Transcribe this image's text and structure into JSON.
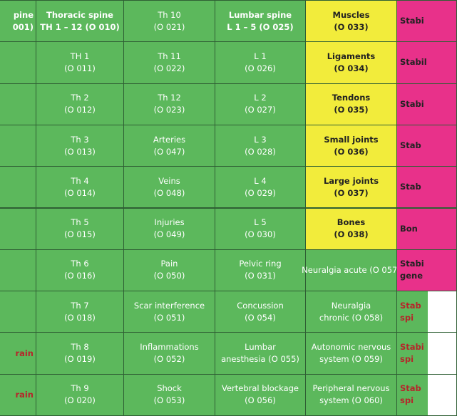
{
  "table": {
    "rows": [
      [
        [
          "pine",
          "001)"
        ],
        [
          "Thoracic spine",
          "TH 1 – 12 (O 010)"
        ],
        [
          "Th 10",
          "(O 021)"
        ],
        [
          "Lumbar spine",
          "L 1 – 5 (O 025)"
        ],
        [
          "Muscles",
          "(O 033)"
        ],
        [
          "Stabi"
        ]
      ],
      [
        [],
        [
          "TH 1",
          "(O 011)"
        ],
        [
          "Th 11",
          "(O 022)"
        ],
        [
          "L 1",
          "(O 026)"
        ],
        [
          "Ligaments",
          "(O 034)"
        ],
        [
          "Stabil"
        ]
      ],
      [
        [],
        [
          "Th 2",
          "(O 012)"
        ],
        [
          "Th 12",
          "(O 023)"
        ],
        [
          "L 2",
          "(O 027)"
        ],
        [
          "Tendons",
          "(O 035)"
        ],
        [
          "Stabi"
        ]
      ],
      [
        [],
        [
          "Th 3",
          "(O 013)"
        ],
        [
          "Arteries",
          "(O 047)"
        ],
        [
          "L 3",
          "(O 028)"
        ],
        [
          "Small joints",
          "(O 036)"
        ],
        [
          "Stab"
        ]
      ],
      [
        [],
        [
          "Th 4",
          "(O 014)"
        ],
        [
          "Veins",
          "(O 048)"
        ],
        [
          "L 4",
          "(O 029)"
        ],
        [
          "Large joints",
          "(O 037)"
        ],
        [
          "Stab"
        ]
      ],
      [
        [],
        [
          "Th 5",
          "(O 015)"
        ],
        [
          "Injuries",
          "(O 049)"
        ],
        [
          "L 5",
          "(O 030)"
        ],
        [
          "Bones",
          "(O 038)"
        ],
        [
          "Bon"
        ]
      ],
      [
        [],
        [
          "Th 6",
          "(O 016)"
        ],
        [
          "Pain",
          "(O 050)"
        ],
        [
          "Pelvic ring",
          "(O 031)"
        ],
        [
          "Neuralgia acute (O 057)"
        ],
        [
          "Stabi",
          "gene"
        ]
      ],
      [
        [],
        [
          "Th 7",
          "(O 018)"
        ],
        [
          "Scar interference",
          "(O 051)"
        ],
        [
          "Concussion",
          "(O 054)"
        ],
        [
          "Neuralgia",
          "chronic (O 058)"
        ],
        [
          "Stab",
          "spi"
        ]
      ],
      [
        [
          "rain"
        ],
        [
          "Th 8",
          "(O 019)"
        ],
        [
          "Inflammations",
          "(O 052)"
        ],
        [
          "Lumbar",
          "anesthesia (O 055)"
        ],
        [
          "Autonomic nervous",
          "system (O 059)"
        ],
        [
          "Stabi",
          "spi"
        ]
      ],
      [
        [
          "rain"
        ],
        [
          "Th 9",
          "(O 020)"
        ],
        [
          "Shock",
          "(O 053)"
        ],
        [
          "Vertebral blockage",
          "(O 056)"
        ],
        [
          "Peripheral nervous",
          "system (O 060)"
        ],
        [
          "Stab",
          "spi"
        ]
      ]
    ]
  }
}
